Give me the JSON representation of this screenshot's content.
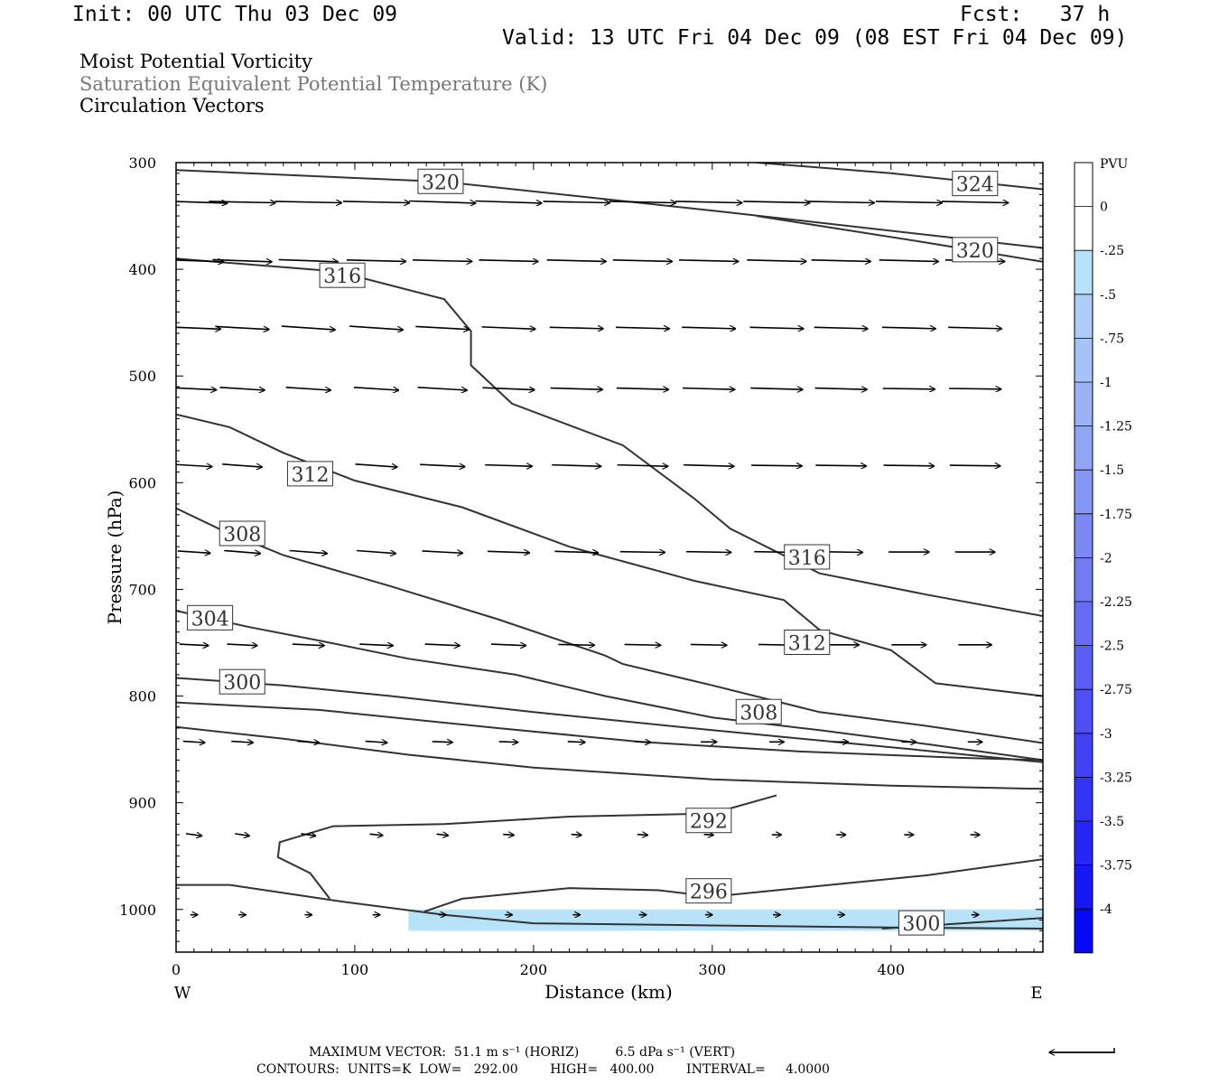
{
  "header": {
    "init": "Init: 00 UTC Thu 03 Dec 09",
    "fcst": "Fcst:   37 h",
    "valid": "Valid: 13 UTC Fri 04 Dec 09 (08 EST Fri 04 Dec 09)"
  },
  "titles": {
    "line1": "Moist Potential Vorticity",
    "line2": "Saturation Equivalent Potential Temperature (K)",
    "line3": "Circulation Vectors"
  },
  "colors": {
    "contour": "#333333",
    "frame": "#000000",
    "pv_fill": "#b8e2f8"
  },
  "chart_data": {
    "type": "cross-section",
    "xlabel": "Distance (km)",
    "ylabel": "Pressure (hPa)",
    "x_range": [
      0,
      485
    ],
    "y_range": [
      300,
      1040
    ],
    "y_scale": "linear, pressure increasing downward",
    "x_ticks": [
      0,
      100,
      200,
      300,
      400
    ],
    "y_ticks": [
      300,
      400,
      500,
      600,
      700,
      800,
      900,
      1000
    ],
    "x_end_labels": {
      "left": "W",
      "right": "E"
    },
    "contour_labels": [
      {
        "text": "320",
        "x": 148,
        "p": 318
      },
      {
        "text": "324",
        "x": 447,
        "p": 320
      },
      {
        "text": "320",
        "x": 447,
        "p": 382
      },
      {
        "text": "316",
        "x": 93,
        "p": 406
      },
      {
        "text": "312",
        "x": 75,
        "p": 592
      },
      {
        "text": "316",
        "x": 353,
        "p": 670
      },
      {
        "text": "308",
        "x": 37,
        "p": 648
      },
      {
        "text": "312",
        "x": 353,
        "p": 750
      },
      {
        "text": "304",
        "x": 19,
        "p": 727
      },
      {
        "text": "308",
        "x": 326,
        "p": 815
      },
      {
        "text": "300",
        "x": 37,
        "p": 787
      },
      {
        "text": "292",
        "x": 298,
        "p": 917
      },
      {
        "text": "296",
        "x": 298,
        "p": 983
      },
      {
        "text": "300",
        "x": 417,
        "p": 1013
      }
    ],
    "contours": [
      {
        "value": 320,
        "pts": [
          [
            0,
            307
          ],
          [
            150,
            318
          ],
          [
            300,
            345
          ],
          [
            485,
            380
          ]
        ]
      },
      {
        "value": 324,
        "pts": [
          [
            325,
            300
          ],
          [
            400,
            310
          ],
          [
            485,
            325
          ]
        ]
      },
      {
        "value": 320,
        "pts": [
          [
            325,
            350
          ],
          [
            420,
            375
          ],
          [
            485,
            393
          ]
        ]
      },
      {
        "value": 316,
        "pts": [
          [
            0,
            390
          ],
          [
            90,
            402
          ],
          [
            150,
            428
          ],
          [
            165,
            458
          ],
          [
            165,
            490
          ],
          [
            188,
            526
          ],
          [
            250,
            565
          ],
          [
            290,
            615
          ],
          [
            310,
            643
          ],
          [
            360,
            685
          ],
          [
            420,
            705
          ],
          [
            485,
            725
          ]
        ]
      },
      {
        "value": 312,
        "pts": [
          [
            0,
            536
          ],
          [
            30,
            548
          ],
          [
            60,
            572
          ],
          [
            100,
            598
          ],
          [
            160,
            623
          ],
          [
            220,
            660
          ],
          [
            290,
            692
          ],
          [
            340,
            710
          ],
          [
            360,
            738
          ],
          [
            400,
            757
          ],
          [
            425,
            788
          ],
          [
            485,
            800
          ]
        ]
      },
      {
        "value": 308,
        "pts": [
          [
            0,
            624
          ],
          [
            25,
            644
          ],
          [
            60,
            668
          ],
          [
            120,
            697
          ],
          [
            180,
            728
          ],
          [
            240,
            762
          ],
          [
            250,
            770
          ],
          [
            300,
            790
          ],
          [
            360,
            815
          ],
          [
            420,
            828
          ],
          [
            485,
            844
          ]
        ]
      },
      {
        "value": 304,
        "pts": [
          [
            0,
            720
          ],
          [
            40,
            735
          ],
          [
            80,
            748
          ],
          [
            130,
            765
          ],
          [
            190,
            780
          ],
          [
            240,
            800
          ],
          [
            300,
            820
          ],
          [
            360,
            832
          ],
          [
            420,
            845
          ],
          [
            485,
            860
          ]
        ]
      },
      {
        "value": 300,
        "pts": [
          [
            0,
            783
          ],
          [
            60,
            790
          ],
          [
            120,
            800
          ],
          [
            200,
            815
          ],
          [
            300,
            832
          ],
          [
            400,
            848
          ],
          [
            485,
            862
          ]
        ]
      },
      {
        "value": 300,
        "pts": [
          [
            0,
            806
          ],
          [
            80,
            813
          ],
          [
            180,
            830
          ],
          [
            260,
            843
          ],
          [
            350,
            852
          ],
          [
            440,
            858
          ],
          [
            485,
            860
          ]
        ]
      },
      {
        "value": 300,
        "pts": [
          [
            0,
            829
          ],
          [
            60,
            840
          ],
          [
            130,
            855
          ],
          [
            200,
            867
          ],
          [
            300,
            878
          ],
          [
            400,
            884
          ],
          [
            485,
            887
          ]
        ]
      },
      {
        "value": 292,
        "pts": [
          [
            336,
            893
          ],
          [
            300,
            910
          ],
          [
            220,
            913
          ],
          [
            150,
            920
          ],
          [
            88,
            922
          ],
          [
            58,
            937
          ],
          [
            57,
            951
          ],
          [
            75,
            966
          ],
          [
            86,
            990
          ]
        ]
      },
      {
        "value": 296,
        "pts": [
          [
            139,
            1002
          ],
          [
            160,
            990
          ],
          [
            220,
            980
          ],
          [
            270,
            982
          ],
          [
            300,
            988
          ],
          [
            360,
            978
          ],
          [
            420,
            968
          ],
          [
            485,
            953
          ]
        ]
      },
      {
        "value": 292,
        "pts": [
          [
            0,
            977
          ],
          [
            30,
            977
          ],
          [
            90,
            992
          ],
          [
            150,
            1005
          ],
          [
            200,
            1013
          ],
          [
            300,
            1015
          ],
          [
            400,
            1017
          ],
          [
            485,
            1018
          ]
        ]
      },
      {
        "value": 300,
        "pts": [
          [
            395,
            1018
          ],
          [
            440,
            1013
          ],
          [
            485,
            1008
          ]
        ]
      }
    ],
    "pv_shading": {
      "level": "-0.25",
      "region_x": [
        130,
        485
      ],
      "region_p": [
        1000,
        1020
      ]
    },
    "vectors": {
      "x": [
        10,
        37,
        74,
        112,
        149,
        186,
        224,
        261,
        298,
        336,
        372,
        410,
        447
      ],
      "rows": [
        {
          "p": 337,
          "u": [
            0.92,
            0.92,
            0.92,
            0.92,
            0.92,
            0.92,
            0.92,
            0.92,
            0.92,
            0.92,
            0.92,
            0.92,
            0.92
          ],
          "w": [
            0.03,
            0.02,
            0.02,
            0.02,
            0.03,
            0.03,
            0.02,
            0.02,
            0.02,
            0.02,
            0.02,
            0.02,
            0.02
          ]
        },
        {
          "p": 392,
          "u": [
            0.82,
            0.82,
            0.82,
            0.82,
            0.82,
            0.82,
            0.82,
            0.82,
            0.82,
            0.82,
            0.82,
            0.82,
            0.82
          ],
          "w": [
            0.03,
            0.03,
            0.03,
            0.02,
            0.02,
            0.02,
            0.02,
            0.02,
            0.02,
            0.02,
            0.02,
            0.02,
            0.02
          ]
        },
        {
          "p": 455,
          "u": [
            0.74,
            0.74,
            0.74,
            0.74,
            0.74,
            0.74,
            0.74,
            0.74,
            0.74,
            0.74,
            0.74,
            0.74,
            0.74
          ],
          "w": [
            0.03,
            0.04,
            0.05,
            0.05,
            0.04,
            0.03,
            0.02,
            0.02,
            0.02,
            0.02,
            0.02,
            0.02,
            0.02
          ]
        },
        {
          "p": 512,
          "u": [
            0.62,
            0.62,
            0.62,
            0.62,
            0.68,
            0.72,
            0.72,
            0.72,
            0.72,
            0.72,
            0.72,
            0.72,
            0.72
          ],
          "w": [
            0.03,
            0.04,
            0.04,
            0.04,
            0.04,
            0.03,
            0.02,
            0.02,
            0.02,
            0.02,
            0.02,
            0.01,
            0.01
          ]
        },
        {
          "p": 584,
          "u": [
            0.5,
            0.55,
            0.55,
            0.58,
            0.62,
            0.65,
            0.68,
            0.7,
            0.7,
            0.7,
            0.7,
            0.7,
            0.7
          ],
          "w": [
            0.03,
            0.04,
            0.04,
            0.04,
            0.03,
            0.02,
            0.02,
            0.02,
            0.02,
            0.01,
            0.01,
            0.01,
            0.01
          ]
        },
        {
          "p": 665,
          "u": [
            0.45,
            0.5,
            0.52,
            0.54,
            0.56,
            0.58,
            0.6,
            0.62,
            0.62,
            0.62,
            0.6,
            0.56,
            0.55
          ],
          "w": [
            0.03,
            0.04,
            0.04,
            0.04,
            0.03,
            0.02,
            0.02,
            0.01,
            0.01,
            0.01,
            0.01,
            0.0,
            0.0
          ]
        },
        {
          "p": 752,
          "u": [
            0.4,
            0.42,
            0.44,
            0.46,
            0.48,
            0.48,
            0.5,
            0.5,
            0.5,
            0.5,
            0.5,
            0.48,
            0.46
          ],
          "w": [
            0.02,
            0.02,
            0.02,
            0.02,
            0.02,
            0.02,
            0.01,
            0.01,
            0.01,
            0.01,
            0.0,
            0.0,
            0.0
          ]
        },
        {
          "p": 843,
          "u": [
            0.3,
            0.3,
            0.3,
            0.3,
            0.28,
            0.26,
            0.24,
            0.22,
            0.22,
            0.2,
            0.2,
            0.2,
            0.2
          ],
          "w": [
            0.02,
            0.02,
            0.02,
            0.02,
            0.01,
            0.01,
            0.01,
            0.01,
            0.0,
            0.0,
            0.0,
            0.0,
            0.0
          ]
        },
        {
          "p": 930,
          "u": [
            0.22,
            0.2,
            0.2,
            0.18,
            0.16,
            0.15,
            0.14,
            0.14,
            0.13,
            0.13,
            0.13,
            0.13,
            0.13
          ],
          "w": [
            0.03,
            0.03,
            0.03,
            0.02,
            0.02,
            0.01,
            0.01,
            0.01,
            0.01,
            0.0,
            0.0,
            0.0,
            0.0
          ]
        },
        {
          "p": 1005,
          "u": [
            0.1,
            0.1,
            0.1,
            0.1,
            0.1,
            0.1,
            0.1,
            0.1,
            0.1,
            0.1,
            0.1,
            0.1,
            0.1
          ],
          "w": [
            0.0,
            0.0,
            0.0,
            0.0,
            0.0,
            0.0,
            0.0,
            0.0,
            0.0,
            0.0,
            0.0,
            0.0,
            0.0
          ]
        }
      ]
    }
  },
  "colorbar": {
    "unit_label": "PVU",
    "levels": [
      "0",
      "-.25",
      "-.5",
      "-.75",
      "-1",
      "-1.25",
      "-1.5",
      "-1.75",
      "-2",
      "-2.25",
      "-2.5",
      "-2.75",
      "-3",
      "-3.25",
      "-3.5",
      "-3.75",
      "-4"
    ],
    "colors": [
      "#ffffff",
      "#ffffff",
      "#b8e2f8",
      "#aeccf6",
      "#a6c2f6",
      "#9cb2f6",
      "#92a4f4",
      "#8696f4",
      "#7c88f4",
      "#727af4",
      "#666cf4",
      "#5a5ef4",
      "#4e50f4",
      "#4242f4",
      "#3434f4",
      "#2626f6",
      "#1818f6",
      "#0808f8"
    ]
  },
  "footer": {
    "line1": "MAXIMUM VECTOR:  51.1 m s⁻¹ (HORIZ)         6.5 dPa s⁻¹ (VERT)",
    "line2": "CONTOURS:  UNITS=K  LOW=   292.00        HIGH=   400.00        INTERVAL=     4.0000"
  }
}
